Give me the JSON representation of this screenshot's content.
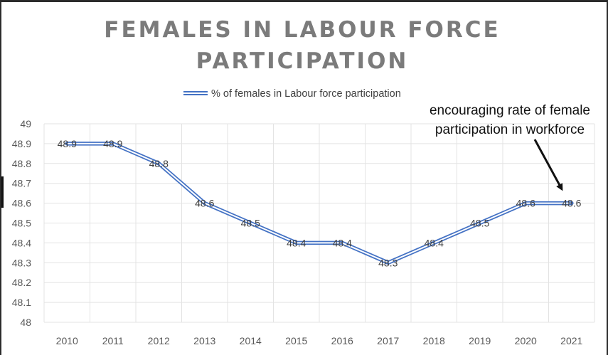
{
  "chart_data": {
    "type": "line",
    "title": "FEMALES IN LABOUR FORCE PARTICIPATION",
    "title_lines": [
      "FEMALES IN LABOUR FORCE",
      "PARTICIPATION"
    ],
    "xlabel": "",
    "ylabel": "",
    "categories": [
      "2010",
      "2011",
      "2012",
      "2013",
      "2014",
      "2015",
      "2016",
      "2017",
      "2018",
      "2019",
      "2020",
      "2021"
    ],
    "series": [
      {
        "name": "% of females in Labour force participation",
        "values": [
          48.9,
          48.9,
          48.8,
          48.6,
          48.5,
          48.4,
          48.4,
          48.3,
          48.4,
          48.5,
          48.6,
          48.6
        ],
        "labels": [
          "48.9",
          "48.9",
          "48.8",
          "48.6",
          "48.5",
          "48.4",
          "48.4",
          "48.3",
          "48.4",
          "48.5",
          "48.6",
          "48.6"
        ],
        "color": "#4472C4"
      }
    ],
    "ylim": [
      48,
      49
    ],
    "yticks": [
      "49",
      "48.9",
      "48.8",
      "48.7",
      "48.6",
      "48.5",
      "48.4",
      "48.3",
      "48.2",
      "48.1",
      "48"
    ],
    "grid": true,
    "legend": "top-center",
    "annotation": {
      "lines": [
        "encouraging rate of female",
        "participation in workforce"
      ],
      "target_category": "2021"
    }
  },
  "colors": {
    "title": "#7b7b7b",
    "series": "#4472C4",
    "grid": "#e3e3e3",
    "axis_text": "#595959"
  }
}
